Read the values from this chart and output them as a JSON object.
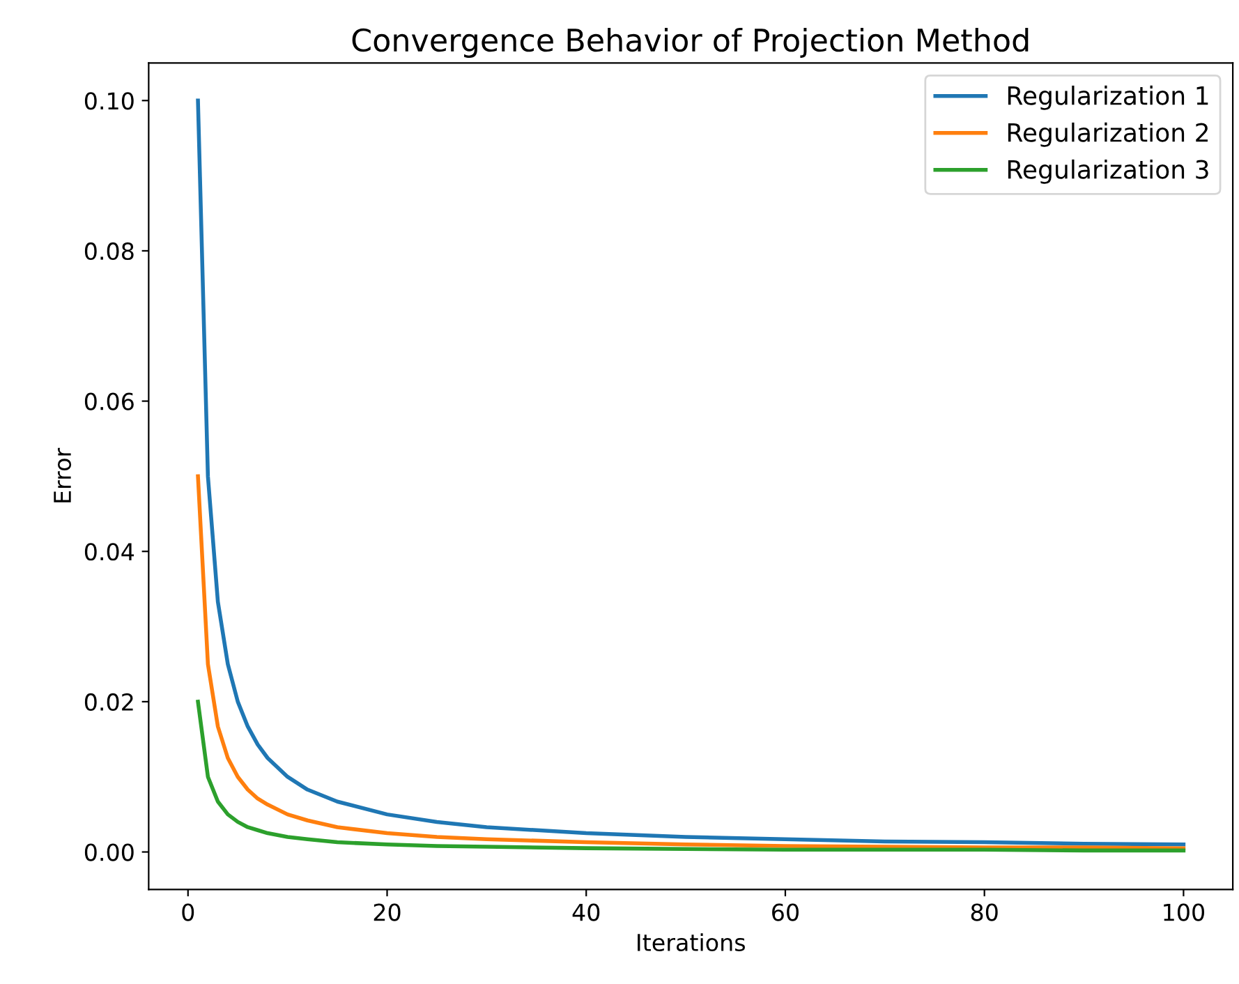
{
  "chart_data": {
    "type": "line",
    "title": "Convergence Behavior of Projection Method",
    "xlabel": "Iterations",
    "ylabel": "Error",
    "x": [
      1,
      2,
      3,
      4,
      5,
      6,
      7,
      8,
      10,
      12,
      15,
      20,
      25,
      30,
      40,
      50,
      60,
      70,
      80,
      90,
      100
    ],
    "series": [
      {
        "name": "Regularization 1",
        "color": "#1f77b4",
        "values": [
          0.1,
          0.05,
          0.0333,
          0.025,
          0.02,
          0.0167,
          0.0143,
          0.0125,
          0.01,
          0.0083,
          0.0067,
          0.005,
          0.004,
          0.0033,
          0.0025,
          0.002,
          0.0017,
          0.0014,
          0.0013,
          0.0011,
          0.001
        ]
      },
      {
        "name": "Regularization 2",
        "color": "#ff7f0e",
        "values": [
          0.05,
          0.025,
          0.0167,
          0.0125,
          0.01,
          0.0083,
          0.0071,
          0.0063,
          0.005,
          0.0042,
          0.0033,
          0.0025,
          0.002,
          0.0017,
          0.0013,
          0.001,
          0.0008,
          0.0007,
          0.0006,
          0.0006,
          0.0005
        ]
      },
      {
        "name": "Regularization 3",
        "color": "#2ca02c",
        "values": [
          0.02,
          0.01,
          0.0067,
          0.005,
          0.004,
          0.0033,
          0.0029,
          0.0025,
          0.002,
          0.0017,
          0.0013,
          0.001,
          0.0008,
          0.0007,
          0.0005,
          0.0004,
          0.0003,
          0.0003,
          0.0003,
          0.0002,
          0.0002
        ]
      }
    ],
    "xlim": [
      -3.95,
      104.95
    ],
    "ylim": [
      -0.005,
      0.105
    ],
    "xticks": [
      0,
      20,
      40,
      60,
      80,
      100
    ],
    "yticks": [
      {
        "value": 0,
        "label": "0.00"
      },
      {
        "value": 0.02,
        "label": "0.02"
      },
      {
        "value": 0.04,
        "label": "0.04"
      },
      {
        "value": 0.06,
        "label": "0.06"
      },
      {
        "value": 0.08,
        "label": "0.08"
      },
      {
        "value": 0.1,
        "label": "0.10"
      }
    ],
    "legend": "top right",
    "grid": false
  }
}
